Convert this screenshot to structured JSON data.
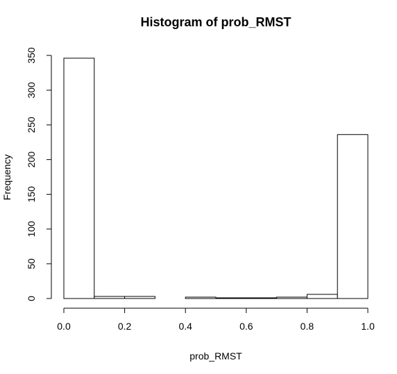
{
  "chart_data": {
    "type": "bar",
    "title": "Histogram of prob_RMST",
    "xlabel": "prob_RMST",
    "ylabel": "Frequency",
    "bins": [
      {
        "x0": 0.0,
        "x1": 0.1,
        "count": 346
      },
      {
        "x0": 0.1,
        "x1": 0.2,
        "count": 3
      },
      {
        "x0": 0.2,
        "x1": 0.3,
        "count": 3
      },
      {
        "x0": 0.3,
        "x1": 0.4,
        "count": 0
      },
      {
        "x0": 0.4,
        "x1": 0.5,
        "count": 2
      },
      {
        "x0": 0.5,
        "x1": 0.6,
        "count": 1
      },
      {
        "x0": 0.6,
        "x1": 0.7,
        "count": 1
      },
      {
        "x0": 0.7,
        "x1": 0.8,
        "count": 2
      },
      {
        "x0": 0.8,
        "x1": 0.9,
        "count": 6
      },
      {
        "x0": 0.9,
        "x1": 1.0,
        "count": 236
      }
    ],
    "xlim": [
      0.0,
      1.0
    ],
    "ylim": [
      0,
      350
    ],
    "xticks": [
      0.0,
      0.2,
      0.4,
      0.6,
      0.8,
      1.0
    ],
    "xtick_labels": [
      "0.0",
      "0.2",
      "0.4",
      "0.6",
      "0.8",
      "1.0"
    ],
    "yticks": [
      0,
      50,
      100,
      150,
      200,
      250,
      300,
      350
    ],
    "ytick_labels": [
      "0",
      "50",
      "100",
      "150",
      "200",
      "250",
      "300",
      "350"
    ],
    "grid": false,
    "legend": "none"
  }
}
